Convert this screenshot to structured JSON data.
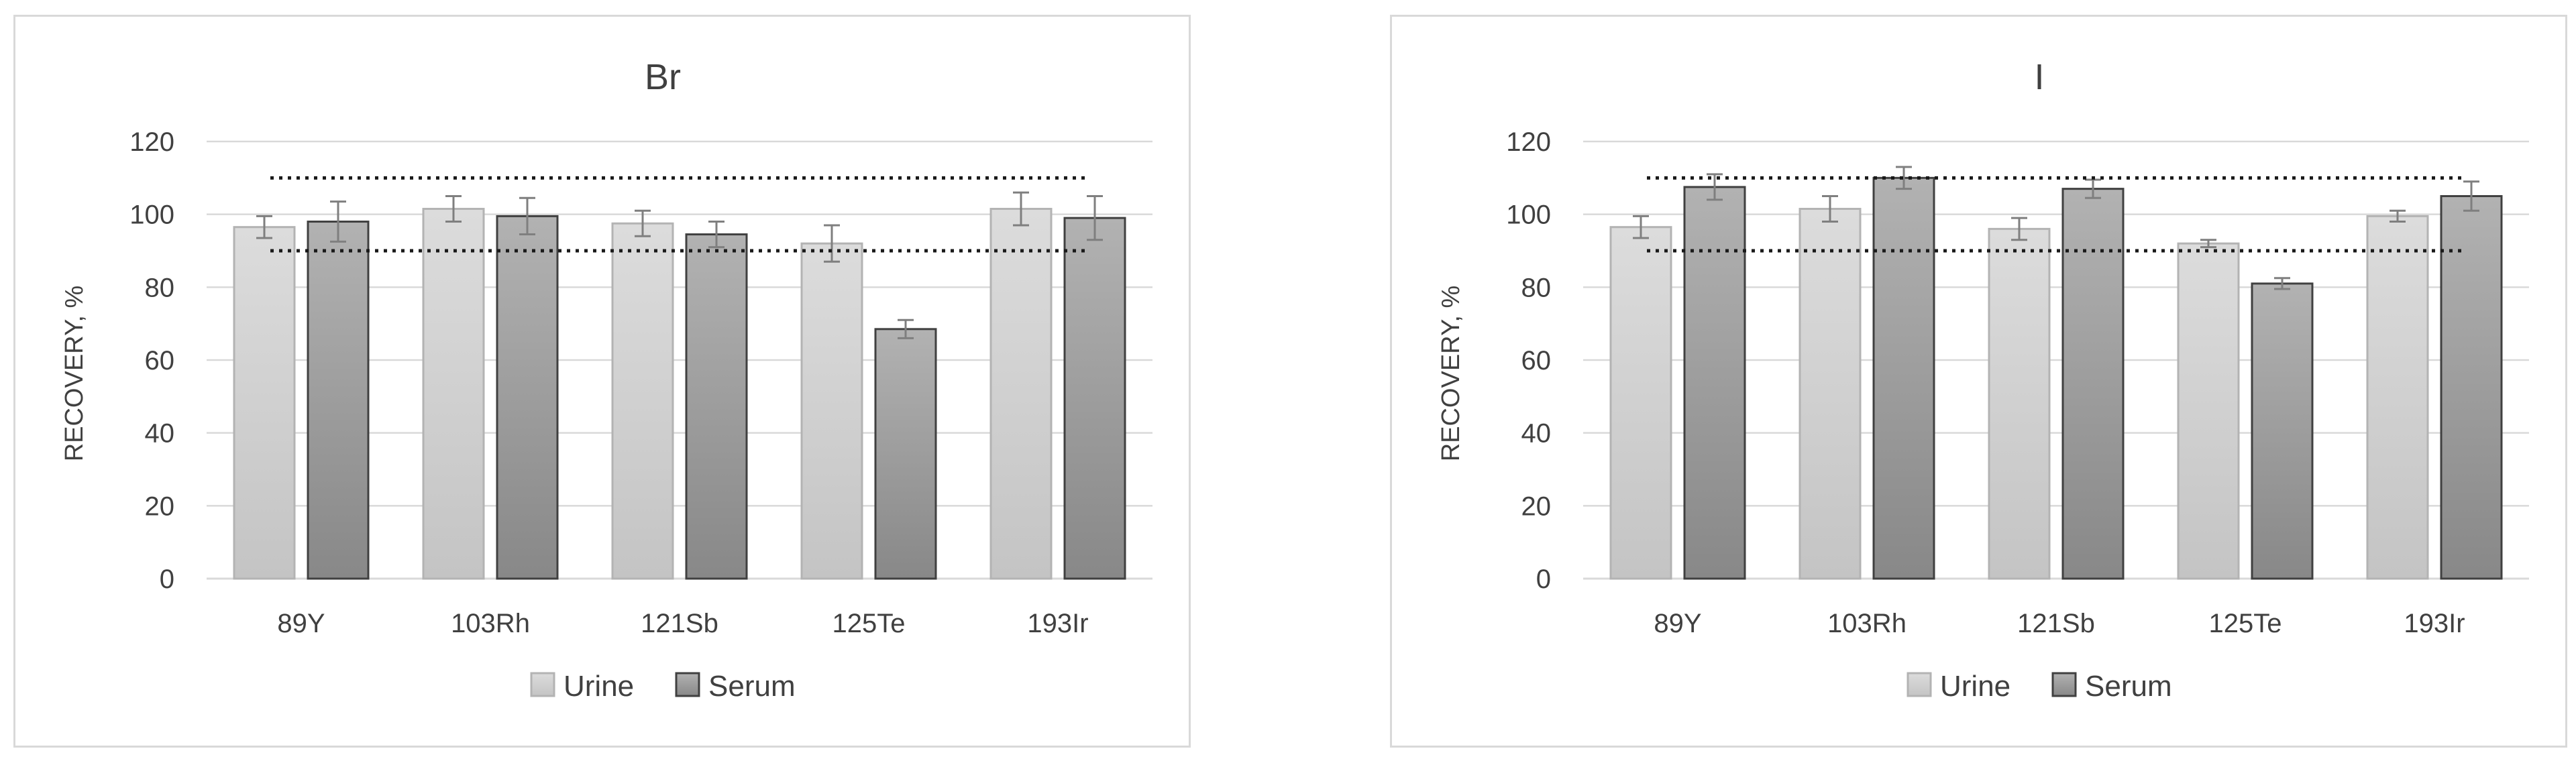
{
  "colors": {
    "urine_fill_top": "#dcdcdc",
    "urine_fill_bottom": "#c4c4c4",
    "urine_stroke": "#b3b3b3",
    "serum_fill_top": "#b2b2b2",
    "serum_fill_bottom": "#888888",
    "serum_stroke": "#404040",
    "gridline": "#d9d9d9",
    "error_bar": "#7f7f7f",
    "reference_line": "#1a1a1a"
  },
  "chart_data": [
    {
      "type": "bar",
      "title": "Br",
      "ylabel": "RECOVERY, %",
      "xlabel": "",
      "ylim": [
        0,
        120
      ],
      "yticks": [
        0,
        20,
        40,
        60,
        80,
        100,
        120
      ],
      "grid": true,
      "legend_position": "bottom",
      "categories": [
        "89Y",
        "103Rh",
        "121Sb",
        "125Te",
        "193Ir"
      ],
      "series": [
        {
          "name": "Urine",
          "values": [
            96.5,
            101.5,
            97.5,
            92,
            101.5
          ],
          "errors": [
            3,
            3.5,
            3.5,
            5,
            4.5
          ]
        },
        {
          "name": "Serum",
          "values": [
            98,
            99.5,
            94.5,
            68.5,
            99
          ],
          "errors": [
            5.5,
            5,
            3.5,
            2.5,
            6
          ]
        }
      ],
      "reference_lines": [
        90,
        110
      ]
    },
    {
      "type": "bar",
      "title": "I",
      "ylabel": "RECOVERY, %",
      "xlabel": "",
      "ylim": [
        0,
        120
      ],
      "yticks": [
        0,
        20,
        40,
        60,
        80,
        100,
        120
      ],
      "grid": true,
      "legend_position": "bottom",
      "categories": [
        "89Y",
        "103Rh",
        "121Sb",
        "125Te",
        "193Ir"
      ],
      "series": [
        {
          "name": "Urine",
          "values": [
            96.5,
            101.5,
            96,
            92,
            99.5
          ],
          "errors": [
            3,
            3.5,
            3,
            1,
            1.5
          ]
        },
        {
          "name": "Serum",
          "values": [
            107.5,
            110,
            107,
            81,
            105
          ],
          "errors": [
            3.5,
            3,
            2.5,
            1.5,
            4
          ]
        }
      ],
      "reference_lines": [
        90,
        110
      ]
    }
  ]
}
